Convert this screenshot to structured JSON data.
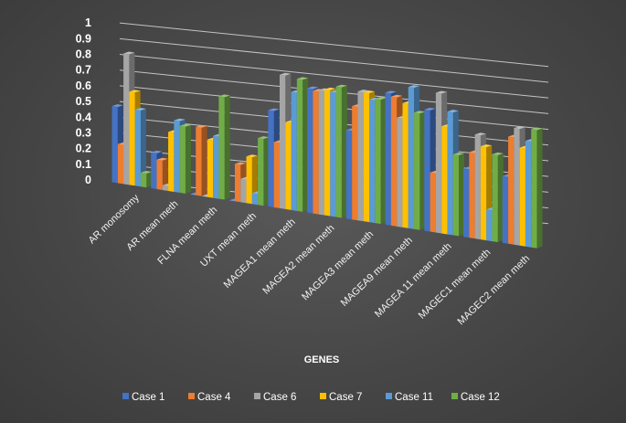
{
  "chart_data": {
    "type": "bar",
    "style": "3d-clustered-column",
    "xlabel": "GENES",
    "ylabel": "",
    "ylim": [
      0,
      1
    ],
    "yticks": [
      "0",
      "0.1",
      "0.2",
      "0.3",
      "0.4",
      "0.5",
      "0.6",
      "0.7",
      "0.8",
      "0.9",
      "1"
    ],
    "grid": true,
    "legend_position": "bottom",
    "categories": [
      "AR monosomy",
      "AR mean meth",
      "FLNA mean meth",
      "UXT mean meth",
      "MAGEA1 mean meth",
      "MAGEA2 mean meth",
      "MAGEA3 mean meth",
      "MAGEA9 mean meth",
      "MAGEA 11 mean meth",
      "MAGEC1 mean meth",
      "MAGEC2 mean meth"
    ],
    "series": [
      {
        "name": "Case 1",
        "color": "#4472C4",
        "values": [
          0.49,
          0.23,
          0.0,
          0.0,
          0.62,
          0.8,
          0.57,
          0.85,
          0.78,
          0.44,
          0.43
        ]
      },
      {
        "name": "Case 4",
        "color": "#ED7D31",
        "values": [
          0.25,
          0.19,
          0.44,
          0.24,
          0.42,
          0.79,
          0.73,
          0.83,
          0.38,
          0.55,
          0.69
        ]
      },
      {
        "name": "Case 6",
        "color": "#A5A5A5",
        "values": [
          0.84,
          0.03,
          0.0,
          0.15,
          0.86,
          0.8,
          0.83,
          0.7,
          0.9,
          0.67,
          0.75
        ]
      },
      {
        "name": "Case 7",
        "color": "#FFC000",
        "values": [
          0.6,
          0.38,
          0.37,
          0.3,
          0.56,
          0.81,
          0.83,
          0.8,
          0.69,
          0.6,
          0.63
        ]
      },
      {
        "name": "Case 11",
        "color": "#5B9BD5",
        "values": [
          0.49,
          0.46,
          0.4,
          0.07,
          0.76,
          0.8,
          0.79,
          0.91,
          0.79,
          0.2,
          0.68
        ]
      },
      {
        "name": "Case 12",
        "color": "#70AD47",
        "values": [
          0.09,
          0.43,
          0.66,
          0.43,
          0.85,
          0.84,
          0.8,
          0.75,
          0.52,
          0.56,
          0.76
        ]
      }
    ]
  }
}
